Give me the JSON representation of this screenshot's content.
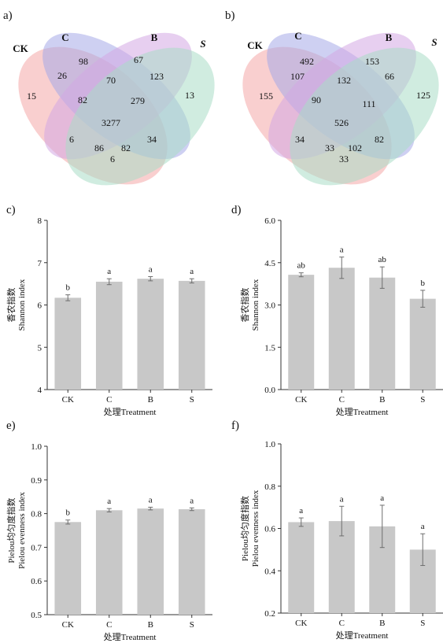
{
  "colors": {
    "bar": "#c8c8c8",
    "error_bar": "#6e6e6e",
    "axis": "#333333",
    "venn": [
      "#f4a7a7",
      "#a6aae8",
      "#d4a7e4",
      "#a9dcc7"
    ]
  },
  "chart_data": [
    {
      "panel": "a)",
      "type": "venn",
      "sets": [
        "CK",
        "C",
        "B",
        "S"
      ],
      "regions": {
        "CK_only": "15",
        "C_only": "98",
        "B_only": "67",
        "S_only": "13",
        "CK_C": "26",
        "C_B": "70",
        "B_S": "123",
        "CK_C_B": "82",
        "C_B_S": "279",
        "all": "3277",
        "CK_S": "6",
        "CK_B": "86",
        "C_S": "82",
        "CK_B_S": "34",
        "CK_C_S": "6"
      }
    },
    {
      "panel": "b)",
      "type": "venn",
      "sets": [
        "CK",
        "C",
        "B",
        "S"
      ],
      "regions": {
        "CK_only": "155",
        "C_only": "492",
        "B_only": "153",
        "S_only": "125",
        "CK_C": "107",
        "C_B": "132",
        "B_S": "66",
        "CK_C_B": "90",
        "C_B_S": "111",
        "all": "526",
        "CK_S": "34",
        "CK_B": "33",
        "C_S": "102",
        "CK_B_S": "82",
        "CK_C_S": "33"
      }
    },
    {
      "panel": "c)",
      "type": "bar",
      "categories": [
        "CK",
        "C",
        "B",
        "S"
      ],
      "values": [
        6.17,
        6.55,
        6.62,
        6.57
      ],
      "errors": [
        0.07,
        0.07,
        0.05,
        0.05
      ],
      "significance": [
        "b",
        "a",
        "a",
        "a"
      ],
      "ylabel_cn": "香农指数",
      "ylabel_en": "Shannon index",
      "xlabel": "处理Treatment",
      "ylim": [
        4,
        8
      ],
      "yticks": [
        "4",
        "5",
        "6",
        "7",
        "8"
      ]
    },
    {
      "panel": "d)",
      "type": "bar",
      "categories": [
        "CK",
        "C",
        "B",
        "S"
      ],
      "values": [
        4.07,
        4.32,
        3.97,
        3.22
      ],
      "errors": [
        0.07,
        0.38,
        0.38,
        0.3
      ],
      "significance": [
        "ab",
        "a",
        "ab",
        "b"
      ],
      "ylabel_cn": "香农指数",
      "ylabel_en": "Shannon index",
      "xlabel": "处理Treatment",
      "ylim": [
        0,
        6
      ],
      "yticks": [
        "0.0",
        "1.5",
        "3.0",
        "4.5",
        "6.0"
      ]
    },
    {
      "panel": "e)",
      "type": "bar",
      "categories": [
        "CK",
        "C",
        "B",
        "S"
      ],
      "values": [
        0.775,
        0.81,
        0.815,
        0.813
      ],
      "errors": [
        0.006,
        0.005,
        0.004,
        0.004
      ],
      "significance": [
        "b",
        "a",
        "a",
        "a"
      ],
      "ylabel_cn": "Pielou均匀度指数",
      "ylabel_en": "Pielou evenness index",
      "xlabel": "处理Treatment",
      "ylim": [
        0.5,
        1.0
      ],
      "yticks": [
        "0.5",
        "0.6",
        "0.7",
        "0.8",
        "0.9",
        "1.0"
      ]
    },
    {
      "panel": "f)",
      "type": "bar",
      "categories": [
        "CK",
        "C",
        "B",
        "S"
      ],
      "values": [
        0.63,
        0.635,
        0.61,
        0.5
      ],
      "errors": [
        0.02,
        0.07,
        0.1,
        0.075
      ],
      "significance": [
        "a",
        "a",
        "a",
        "a"
      ],
      "ylabel_cn": "Pielou均匀度指数",
      "ylabel_en": "Pielou evenness index",
      "xlabel": "处理Treatment",
      "ylim": [
        0.2,
        1.0
      ],
      "yticks": [
        "0.2",
        "0.4",
        "0.6",
        "0.8",
        "1.0"
      ]
    }
  ]
}
